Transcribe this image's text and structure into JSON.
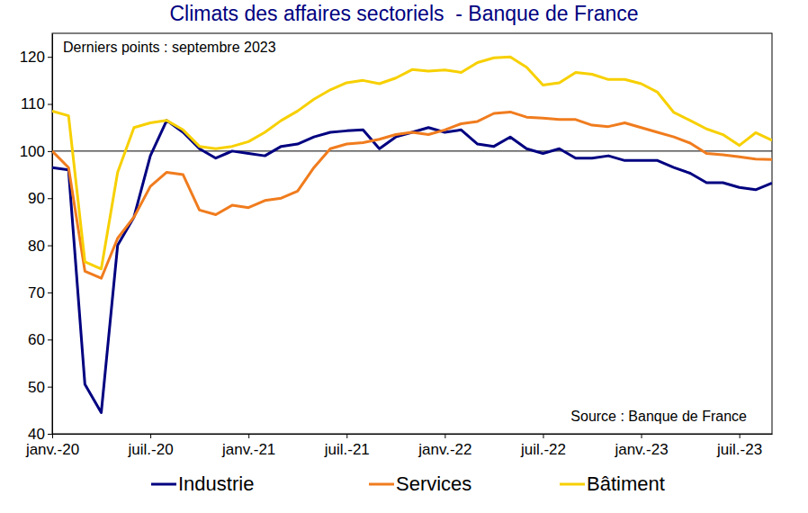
{
  "chart_data": {
    "type": "line",
    "title": "Climats des affaires sectoriels  - Banque de France",
    "note": "Derniers points : septembre 2023",
    "source": "Source : Banque de France",
    "categories": [
      "janv.-20",
      null,
      null,
      null,
      null,
      null,
      "juil.-20",
      null,
      null,
      null,
      null,
      null,
      "janv.-21",
      null,
      null,
      null,
      null,
      null,
      "juil.-21",
      null,
      null,
      null,
      null,
      null,
      "janv.-22",
      null,
      null,
      null,
      null,
      null,
      "juil.-22",
      null,
      null,
      null,
      null,
      null,
      "janv.-23",
      null,
      null,
      null,
      null,
      null,
      "juil.-23",
      null,
      null
    ],
    "series": [
      {
        "name": "Industrie",
        "color": "#000080",
        "values": [
          96.5,
          96,
          50.5,
          44.5,
          80,
          86,
          99,
          106.5,
          104,
          100.5,
          98.5,
          100,
          99.5,
          99,
          101,
          101.5,
          103,
          104,
          104.3,
          104.5,
          100.5,
          103,
          104,
          105,
          104,
          104.5,
          101.5,
          101,
          103,
          100.5,
          99.5,
          100.5,
          98.5,
          98.5,
          99,
          98,
          98,
          98,
          96.5,
          95.3,
          93.3,
          93.3,
          92.3,
          91.8,
          93.2
        ]
      },
      {
        "name": "Services",
        "color": "#f07c1e",
        "values": [
          100,
          96.5,
          74.5,
          73,
          81.5,
          86,
          92.5,
          95.5,
          95,
          87.5,
          86.5,
          88.5,
          88,
          89.5,
          90,
          91.5,
          96.5,
          100.5,
          101.5,
          101.8,
          102.5,
          103.5,
          104,
          103.5,
          104.5,
          105.8,
          106.3,
          108,
          108.3,
          107.2,
          107,
          106.7,
          106.7,
          105.5,
          105.2,
          106,
          105,
          104,
          103,
          101.7,
          99.5,
          99.2,
          98.8,
          98.3,
          98.2
        ]
      },
      {
        "name": "Bâtiment",
        "color": "#f7d000",
        "values": [
          108.5,
          107.5,
          76.5,
          75,
          95.5,
          105,
          106,
          106.5,
          104.5,
          101,
          100.5,
          101,
          102,
          104,
          106.5,
          108.5,
          111,
          113,
          114.5,
          115,
          114.3,
          115.5,
          117.3,
          117,
          117.2,
          116.7,
          118.8,
          119.8,
          120,
          117.8,
          114,
          114.5,
          116.7,
          116.3,
          115.2,
          115.2,
          114.3,
          112.5,
          108.2,
          106.5,
          104.7,
          103.5,
          101.2,
          103.9,
          102.3
        ]
      }
    ],
    "ylim": [
      40,
      125
    ],
    "yticks": [
      40,
      50,
      60,
      70,
      80,
      90,
      100,
      110,
      120
    ],
    "reference_line": 100,
    "grid": false,
    "legend": "bottom"
  }
}
